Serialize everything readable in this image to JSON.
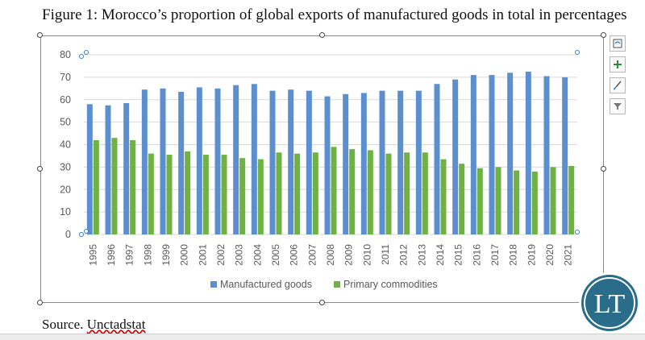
{
  "figure_title": "Figure 1: Morocco’s proportion of global exports of manufactured goods in total in percentages",
  "source": {
    "prefix": "Source. ",
    "link": "Unctadstat"
  },
  "logo_text": "LT",
  "colors": {
    "manufactured": "#5b8fd0",
    "primary": "#6fb143",
    "grid": "#d9d9d9",
    "axis_text": "#595959"
  },
  "tools": [
    "chart-layout-icon",
    "add-element-icon",
    "brush-style-icon",
    "filter-icon"
  ],
  "chart_data": {
    "type": "bar",
    "title": "",
    "xlabel": "",
    "ylabel": "",
    "ylim": [
      0,
      80
    ],
    "yticks": [
      0,
      10,
      20,
      30,
      40,
      50,
      60,
      70,
      80
    ],
    "grid": true,
    "legend_position": "bottom",
    "categories": [
      "1995",
      "1996",
      "1997",
      "1998",
      "1999",
      "2000",
      "2001",
      "2002",
      "2003",
      "2004",
      "2005",
      "2006",
      "2007",
      "2008",
      "2009",
      "2010",
      "2011",
      "2012",
      "2013",
      "2014",
      "2015",
      "2016",
      "2017",
      "2018",
      "2019",
      "2020",
      "2021"
    ],
    "series": [
      {
        "name": "Manufactured goods",
        "values": [
          58,
          57.5,
          58.5,
          64.5,
          65,
          63.5,
          65.5,
          65,
          66.5,
          67,
          64,
          64.5,
          64,
          61.5,
          62.5,
          63,
          64,
          64,
          64,
          67,
          69,
          71,
          71,
          72,
          72.5,
          70.5,
          70
        ]
      },
      {
        "name": "Primary commodities",
        "values": [
          42,
          43,
          42,
          36,
          35.5,
          37,
          35.5,
          35.5,
          34,
          33.5,
          36.5,
          36,
          36.5,
          39,
          38,
          37.5,
          36,
          36.5,
          36.5,
          33.5,
          31.5,
          29.5,
          30,
          28.5,
          28,
          30,
          30.5
        ]
      }
    ]
  }
}
